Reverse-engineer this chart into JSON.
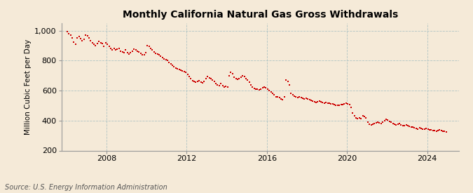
{
  "title": "Monthly California Natural Gas Gross Withdrawals",
  "ylabel": "Million Cubic Feet per Day",
  "source": "Source: U.S. Energy Information Administration",
  "background_color": "#f5ead8",
  "plot_background_color": "#f5ead8",
  "marker_color": "#cc0000",
  "ylim": [
    200,
    1050
  ],
  "xlim_start": [
    2005,
    10,
    1
  ],
  "xlim_end": [
    2025,
    8,
    1
  ],
  "yticks": [
    200,
    400,
    600,
    800,
    1000
  ],
  "ytick_labels": [
    "200",
    "400",
    "600",
    "800",
    "1,000"
  ],
  "xtick_years": [
    2008,
    2012,
    2016,
    2020,
    2024
  ],
  "grid_color": "#b0c4c4",
  "title_fontsize": 10,
  "label_fontsize": 7.5,
  "tick_fontsize": 8,
  "source_fontsize": 7,
  "data": [
    [
      2006,
      1,
      995
    ],
    [
      2006,
      2,
      980
    ],
    [
      2006,
      3,
      970
    ],
    [
      2006,
      4,
      950
    ],
    [
      2006,
      5,
      925
    ],
    [
      2006,
      6,
      910
    ],
    [
      2006,
      7,
      950
    ],
    [
      2006,
      8,
      960
    ],
    [
      2006,
      9,
      945
    ],
    [
      2006,
      10,
      935
    ],
    [
      2006,
      11,
      940
    ],
    [
      2006,
      12,
      970
    ],
    [
      2007,
      1,
      965
    ],
    [
      2007,
      2,
      950
    ],
    [
      2007,
      3,
      935
    ],
    [
      2007,
      4,
      920
    ],
    [
      2007,
      5,
      910
    ],
    [
      2007,
      6,
      900
    ],
    [
      2007,
      7,
      915
    ],
    [
      2007,
      8,
      930
    ],
    [
      2007,
      9,
      920
    ],
    [
      2007,
      10,
      915
    ],
    [
      2007,
      11,
      895
    ],
    [
      2007,
      12,
      920
    ],
    [
      2008,
      1,
      910
    ],
    [
      2008,
      2,
      895
    ],
    [
      2008,
      3,
      880
    ],
    [
      2008,
      4,
      870
    ],
    [
      2008,
      5,
      880
    ],
    [
      2008,
      6,
      870
    ],
    [
      2008,
      7,
      875
    ],
    [
      2008,
      8,
      880
    ],
    [
      2008,
      9,
      865
    ],
    [
      2008,
      10,
      860
    ],
    [
      2008,
      11,
      855
    ],
    [
      2008,
      12,
      870
    ],
    [
      2009,
      1,
      855
    ],
    [
      2009,
      2,
      845
    ],
    [
      2009,
      3,
      855
    ],
    [
      2009,
      4,
      865
    ],
    [
      2009,
      5,
      875
    ],
    [
      2009,
      6,
      870
    ],
    [
      2009,
      7,
      865
    ],
    [
      2009,
      8,
      860
    ],
    [
      2009,
      9,
      850
    ],
    [
      2009,
      10,
      840
    ],
    [
      2009,
      11,
      840
    ],
    [
      2009,
      12,
      855
    ],
    [
      2010,
      1,
      900
    ],
    [
      2010,
      2,
      895
    ],
    [
      2010,
      3,
      880
    ],
    [
      2010,
      4,
      870
    ],
    [
      2010,
      5,
      860
    ],
    [
      2010,
      6,
      850
    ],
    [
      2010,
      7,
      845
    ],
    [
      2010,
      8,
      840
    ],
    [
      2010,
      9,
      830
    ],
    [
      2010,
      10,
      820
    ],
    [
      2010,
      11,
      810
    ],
    [
      2010,
      12,
      805
    ],
    [
      2011,
      1,
      800
    ],
    [
      2011,
      2,
      790
    ],
    [
      2011,
      3,
      780
    ],
    [
      2011,
      4,
      770
    ],
    [
      2011,
      5,
      760
    ],
    [
      2011,
      6,
      750
    ],
    [
      2011,
      7,
      745
    ],
    [
      2011,
      8,
      740
    ],
    [
      2011,
      9,
      735
    ],
    [
      2011,
      10,
      730
    ],
    [
      2011,
      11,
      725
    ],
    [
      2011,
      12,
      720
    ],
    [
      2012,
      1,
      710
    ],
    [
      2012,
      2,
      695
    ],
    [
      2012,
      3,
      680
    ],
    [
      2012,
      4,
      665
    ],
    [
      2012,
      5,
      660
    ],
    [
      2012,
      6,
      655
    ],
    [
      2012,
      7,
      660
    ],
    [
      2012,
      8,
      665
    ],
    [
      2012,
      9,
      655
    ],
    [
      2012,
      10,
      650
    ],
    [
      2012,
      11,
      660
    ],
    [
      2012,
      12,
      680
    ],
    [
      2013,
      1,
      695
    ],
    [
      2013,
      2,
      685
    ],
    [
      2013,
      3,
      680
    ],
    [
      2013,
      4,
      670
    ],
    [
      2013,
      5,
      660
    ],
    [
      2013,
      6,
      645
    ],
    [
      2013,
      7,
      640
    ],
    [
      2013,
      8,
      635
    ],
    [
      2013,
      9,
      645
    ],
    [
      2013,
      10,
      635
    ],
    [
      2013,
      11,
      625
    ],
    [
      2013,
      12,
      630
    ],
    [
      2014,
      1,
      625
    ],
    [
      2014,
      2,
      700
    ],
    [
      2014,
      3,
      720
    ],
    [
      2014,
      4,
      715
    ],
    [
      2014,
      5,
      690
    ],
    [
      2014,
      6,
      680
    ],
    [
      2014,
      7,
      675
    ],
    [
      2014,
      8,
      680
    ],
    [
      2014,
      9,
      690
    ],
    [
      2014,
      10,
      700
    ],
    [
      2014,
      11,
      695
    ],
    [
      2014,
      12,
      680
    ],
    [
      2015,
      1,
      670
    ],
    [
      2015,
      2,
      655
    ],
    [
      2015,
      3,
      640
    ],
    [
      2015,
      4,
      625
    ],
    [
      2015,
      5,
      615
    ],
    [
      2015,
      6,
      610
    ],
    [
      2015,
      7,
      610
    ],
    [
      2015,
      8,
      605
    ],
    [
      2015,
      9,
      610
    ],
    [
      2015,
      10,
      620
    ],
    [
      2015,
      11,
      625
    ],
    [
      2015,
      12,
      620
    ],
    [
      2016,
      1,
      610
    ],
    [
      2016,
      2,
      600
    ],
    [
      2016,
      3,
      590
    ],
    [
      2016,
      4,
      580
    ],
    [
      2016,
      5,
      570
    ],
    [
      2016,
      6,
      560
    ],
    [
      2016,
      7,
      560
    ],
    [
      2016,
      8,
      555
    ],
    [
      2016,
      9,
      545
    ],
    [
      2016,
      10,
      540
    ],
    [
      2016,
      11,
      560
    ],
    [
      2016,
      12,
      670
    ],
    [
      2017,
      1,
      660
    ],
    [
      2017,
      2,
      640
    ],
    [
      2017,
      3,
      580
    ],
    [
      2017,
      4,
      570
    ],
    [
      2017,
      5,
      565
    ],
    [
      2017,
      6,
      560
    ],
    [
      2017,
      7,
      555
    ],
    [
      2017,
      8,
      560
    ],
    [
      2017,
      9,
      555
    ],
    [
      2017,
      10,
      550
    ],
    [
      2017,
      11,
      545
    ],
    [
      2017,
      12,
      550
    ],
    [
      2018,
      1,
      545
    ],
    [
      2018,
      2,
      540
    ],
    [
      2018,
      3,
      535
    ],
    [
      2018,
      4,
      530
    ],
    [
      2018,
      5,
      525
    ],
    [
      2018,
      6,
      520
    ],
    [
      2018,
      7,
      525
    ],
    [
      2018,
      8,
      530
    ],
    [
      2018,
      9,
      525
    ],
    [
      2018,
      10,
      520
    ],
    [
      2018,
      11,
      518
    ],
    [
      2018,
      12,
      520
    ],
    [
      2019,
      1,
      518
    ],
    [
      2019,
      2,
      515
    ],
    [
      2019,
      3,
      512
    ],
    [
      2019,
      4,
      510
    ],
    [
      2019,
      5,
      505
    ],
    [
      2019,
      6,
      502
    ],
    [
      2019,
      7,
      500
    ],
    [
      2019,
      8,
      502
    ],
    [
      2019,
      9,
      505
    ],
    [
      2019,
      10,
      508
    ],
    [
      2019,
      11,
      510
    ],
    [
      2019,
      12,
      515
    ],
    [
      2020,
      1,
      510
    ],
    [
      2020,
      2,
      505
    ],
    [
      2020,
      3,
      490
    ],
    [
      2020,
      4,
      450
    ],
    [
      2020,
      5,
      430
    ],
    [
      2020,
      6,
      418
    ],
    [
      2020,
      7,
      415
    ],
    [
      2020,
      8,
      420
    ],
    [
      2020,
      9,
      415
    ],
    [
      2020,
      10,
      430
    ],
    [
      2020,
      11,
      425
    ],
    [
      2020,
      12,
      420
    ],
    [
      2021,
      1,
      390
    ],
    [
      2021,
      2,
      375
    ],
    [
      2021,
      3,
      370
    ],
    [
      2021,
      4,
      375
    ],
    [
      2021,
      5,
      380
    ],
    [
      2021,
      6,
      385
    ],
    [
      2021,
      7,
      388
    ],
    [
      2021,
      8,
      385
    ],
    [
      2021,
      9,
      380
    ],
    [
      2021,
      10,
      390
    ],
    [
      2021,
      11,
      400
    ],
    [
      2021,
      12,
      410
    ],
    [
      2022,
      1,
      405
    ],
    [
      2022,
      2,
      395
    ],
    [
      2022,
      3,
      388
    ],
    [
      2022,
      4,
      382
    ],
    [
      2022,
      5,
      375
    ],
    [
      2022,
      6,
      370
    ],
    [
      2022,
      7,
      375
    ],
    [
      2022,
      8,
      380
    ],
    [
      2022,
      9,
      370
    ],
    [
      2022,
      10,
      368
    ],
    [
      2022,
      11,
      365
    ],
    [
      2022,
      12,
      370
    ],
    [
      2023,
      1,
      365
    ],
    [
      2023,
      2,
      360
    ],
    [
      2023,
      3,
      358
    ],
    [
      2023,
      4,
      355
    ],
    [
      2023,
      5,
      350
    ],
    [
      2023,
      6,
      348
    ],
    [
      2023,
      7,
      345
    ],
    [
      2023,
      8,
      350
    ],
    [
      2023,
      9,
      348
    ],
    [
      2023,
      10,
      345
    ],
    [
      2023,
      11,
      342
    ],
    [
      2023,
      12,
      348
    ],
    [
      2024,
      1,
      345
    ],
    [
      2024,
      2,
      340
    ],
    [
      2024,
      3,
      338
    ],
    [
      2024,
      4,
      335
    ],
    [
      2024,
      5,
      332
    ],
    [
      2024,
      6,
      330
    ],
    [
      2024,
      7,
      335
    ],
    [
      2024,
      8,
      338
    ],
    [
      2024,
      9,
      333
    ],
    [
      2024,
      10,
      330
    ],
    [
      2024,
      11,
      328
    ],
    [
      2024,
      12,
      325
    ]
  ]
}
